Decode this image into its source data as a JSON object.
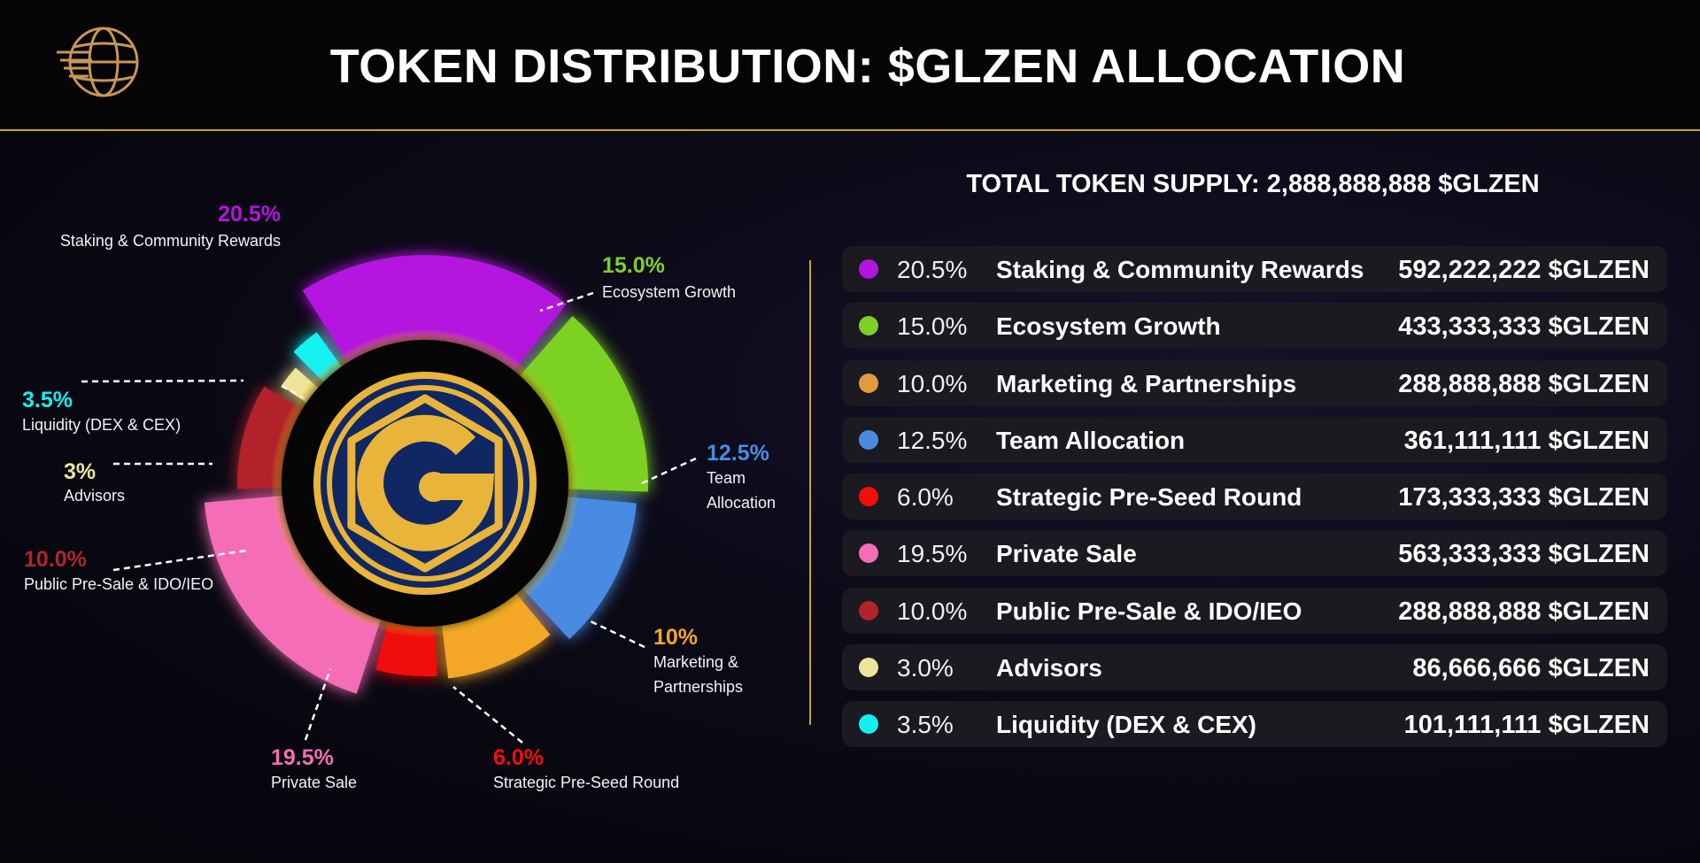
{
  "header": {
    "title": "TOKEN DISTRIBUTION: $GLZEN ALLOCATION"
  },
  "logo": {
    "icon": "globe-logo-icon",
    "color": "#c9955a"
  },
  "coin": {
    "icon": "g-coin-logo-icon",
    "gold": "#e9b43a",
    "navy": "#0f2763"
  },
  "summary": {
    "total_supply_text": "TOTAL TOKEN SUPPLY: 2,888,888,888 $GLZEN"
  },
  "chart_data": {
    "type": "pie",
    "style": "donut",
    "categories": [
      "Staking & Community Rewards",
      "Ecosystem Growth",
      "Team Allocation",
      "Marketing & Partnerships",
      "Strategic Pre-Seed Round",
      "Private Sale",
      "Public Pre-Sale & IDO/IEO",
      "Advisors",
      "Liquidity (DEX & CEX)"
    ],
    "values": [
      20.5,
      15.0,
      12.5,
      10.0,
      6.0,
      19.5,
      10.0,
      3.0,
      3.5
    ],
    "colors": [
      "#b414e0",
      "#7dd124",
      "#4a8be2",
      "#f4a728",
      "#f20d0d",
      "#f56db6",
      "#b3242a",
      "#efe497",
      "#12f0f0"
    ],
    "labels": [
      {
        "pct": "20.5%",
        "name": "Staking & Community Rewards"
      },
      {
        "pct": "15.0%",
        "name": "Ecosystem Growth"
      },
      {
        "pct": "12.5%",
        "name": "Team Allocation"
      },
      {
        "pct": "10%",
        "name": "Marketing & Partnerships"
      },
      {
        "pct": "6.0%",
        "name": "Strategic Pre-Seed Round"
      },
      {
        "pct": "19.5%",
        "name": "Private Sale"
      },
      {
        "pct": "10.0%",
        "name": "Public Pre-Sale & IDO/IEO"
      },
      {
        "pct": "3%",
        "name": "Advisors"
      },
      {
        "pct": "3.5%",
        "name": "Liquidity (DEX & CEX)"
      }
    ]
  },
  "table": {
    "rows": [
      {
        "pct": "20.5%",
        "name": "Staking & Community Rewards",
        "amount": "592,222,222 $GLZEN",
        "color": "#b414e0"
      },
      {
        "pct": "15.0%",
        "name": "Ecosystem Growth",
        "amount": "433,333,333 $GLZEN",
        "color": "#7dd124"
      },
      {
        "pct": "10.0%",
        "name": "Marketing & Partnerships",
        "amount": "288,888,888 $GLZEN",
        "color": "#e39a3e"
      },
      {
        "pct": "12.5%",
        "name": "Team Allocation",
        "amount": "361,111,111 $GLZEN",
        "color": "#4a8be2"
      },
      {
        "pct": "6.0%",
        "name": "Strategic Pre-Seed Round",
        "amount": "173,333,333 $GLZEN",
        "color": "#f20d0d"
      },
      {
        "pct": "19.5%",
        "name": "Private Sale",
        "amount": "563,333,333 $GLZEN",
        "color": "#f56db6"
      },
      {
        "pct": "10.0%",
        "name": "Public Pre-Sale & IDO/IEO",
        "amount": "288,888,888 $GLZEN",
        "color": "#b3242a"
      },
      {
        "pct": "3.0%",
        "name": "Advisors",
        "amount": "86,666,666 $GLZEN",
        "color": "#efe497"
      },
      {
        "pct": "3.5%",
        "name": "Liquidity (DEX & CEX)",
        "amount": "101,111,111 $GLZEN",
        "color": "#12f0f0"
      }
    ]
  }
}
